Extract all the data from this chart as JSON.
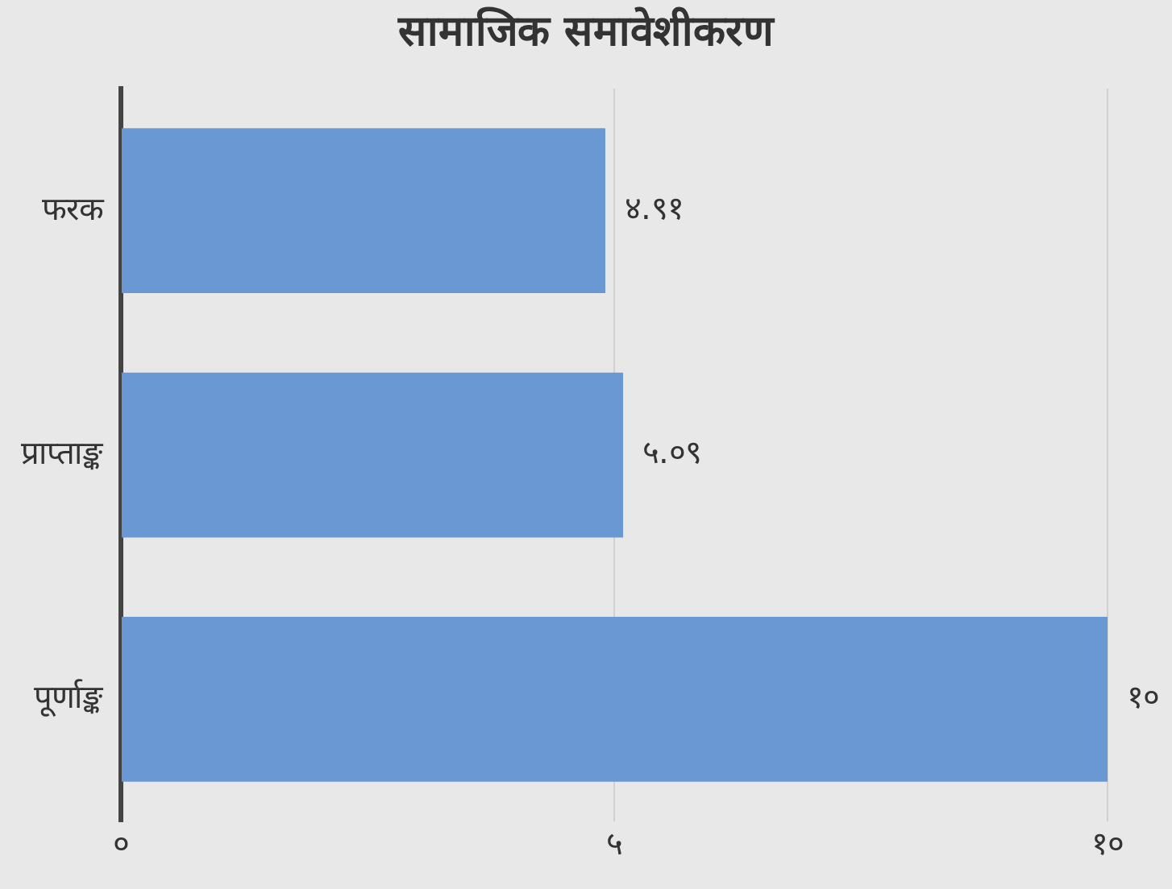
{
  "chart_data": {
    "type": "bar",
    "orientation": "horizontal",
    "title": "सामाजिक समावेशीकरण",
    "categories": [
      "फरक",
      "प्राप्ताङ्क",
      "पूर्णाङ्क"
    ],
    "values": [
      4.91,
      5.09,
      10
    ],
    "value_labels": [
      "४.९१",
      "५.०९",
      "१०"
    ],
    "color": "#6a98d2",
    "xlim": [
      0,
      10
    ],
    "xticks": [
      {
        "value": 0,
        "label": "०"
      },
      {
        "value": 5,
        "label": "५"
      },
      {
        "value": 10,
        "label": "१०"
      }
    ],
    "grid": "x",
    "legend": false
  }
}
